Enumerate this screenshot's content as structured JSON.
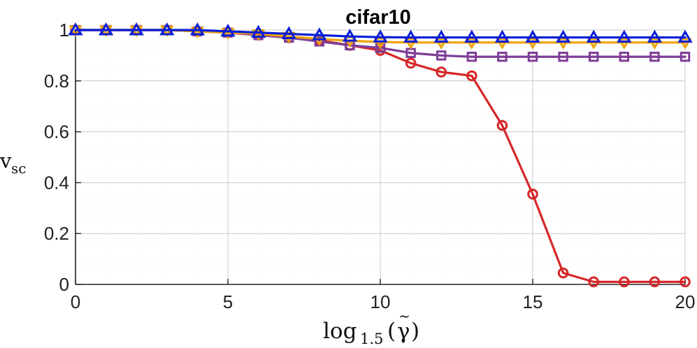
{
  "chart_data": {
    "type": "line",
    "title": "cifar10",
    "xlabel": "log1.5(γ̃)",
    "xlabel_parts": {
      "main": "log",
      "subscript": "1.5",
      "argument_open": "(",
      "argument": "γ",
      "argument_accent": "~",
      "argument_close": ")"
    },
    "ylabel": "vsc",
    "ylabel_parts": {
      "main": "v",
      "subscript": "sc"
    },
    "xlim": [
      0,
      20
    ],
    "ylim": [
      0,
      1
    ],
    "x_ticks": [
      0,
      5,
      10,
      15,
      20
    ],
    "x_tick_labels": [
      "0",
      "5",
      "10",
      "15",
      "20"
    ],
    "y_ticks": [
      0,
      0.2,
      0.4,
      0.6,
      0.8,
      1
    ],
    "y_tick_labels": [
      "0",
      "0.2",
      "0.4",
      "0.6",
      "0.8",
      "1"
    ],
    "grid": true,
    "minor_grid": true,
    "x": [
      0,
      1,
      2,
      3,
      4,
      5,
      6,
      7,
      8,
      9,
      10,
      11,
      12,
      13,
      14,
      15,
      16,
      17,
      18,
      19,
      20
    ],
    "series": [
      {
        "name": "red-circle",
        "color": "#d62728",
        "marker": "circle",
        "values": [
          1.0,
          1.0,
          1.0,
          1.0,
          0.995,
          0.99,
          0.98,
          0.97,
          0.96,
          0.94,
          0.92,
          0.87,
          0.835,
          0.82,
          0.625,
          0.355,
          0.045,
          0.01,
          0.01,
          0.01,
          0.01
        ]
      },
      {
        "name": "purple-square",
        "color": "#7e3e98",
        "marker": "square",
        "values": [
          1.0,
          1.0,
          1.0,
          1.0,
          0.995,
          0.99,
          0.98,
          0.97,
          0.955,
          0.94,
          0.93,
          0.91,
          0.9,
          0.895,
          0.895,
          0.895,
          0.895,
          0.895,
          0.895,
          0.895,
          0.895
        ]
      },
      {
        "name": "orange-down-triangle",
        "color": "#f0a30a",
        "marker": "triangle-down",
        "values": [
          1.0,
          1.0,
          1.0,
          1.0,
          0.995,
          0.99,
          0.985,
          0.975,
          0.965,
          0.958,
          0.953,
          0.951,
          0.951,
          0.951,
          0.951,
          0.951,
          0.951,
          0.951,
          0.951,
          0.951,
          0.951
        ]
      },
      {
        "name": "blue-up-triangle",
        "color": "#0a1fd8",
        "marker": "triangle-up",
        "values": [
          1.0,
          1.0,
          1.0,
          1.0,
          1.0,
          0.995,
          0.99,
          0.985,
          0.98,
          0.975,
          0.972,
          0.971,
          0.971,
          0.971,
          0.971,
          0.971,
          0.971,
          0.971,
          0.971,
          0.971,
          0.971
        ]
      }
    ]
  }
}
